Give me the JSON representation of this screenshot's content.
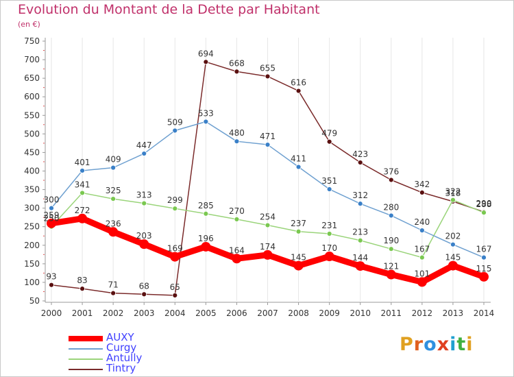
{
  "title": "Evolution du Montant de la Dette par Habitant",
  "subtitle": "(en €)",
  "logo": {
    "text": "Proxiti",
    "letters": [
      {
        "ch": "P",
        "color": "#e0a020"
      },
      {
        "ch": "r",
        "color": "#e06020"
      },
      {
        "ch": "o",
        "color": "#3090e0"
      },
      {
        "ch": "x",
        "color": "#e04020"
      },
      {
        "ch": "i",
        "color": "#20a0d0"
      },
      {
        "ch": "t",
        "color": "#40b040"
      },
      {
        "ch": "i",
        "color": "#e0a020"
      }
    ]
  },
  "chart_data": {
    "type": "line",
    "title": "Evolution du Montant de la Dette par Habitant",
    "ylabel": "(en €)",
    "xlabel": "",
    "x": [
      "2000",
      "2001",
      "2002",
      "2003",
      "2004",
      "2005",
      "2006",
      "2007",
      "2008",
      "2009",
      "2010",
      "2011",
      "2012",
      "2013",
      "2014"
    ],
    "ylim": [
      50,
      750
    ],
    "yticks": [
      50,
      100,
      150,
      200,
      250,
      300,
      350,
      400,
      450,
      500,
      550,
      600,
      650,
      700,
      750
    ],
    "grid": "vertical",
    "legend": "bottom-left",
    "series": [
      {
        "name": "AUXY",
        "color": "#ff0000",
        "values": [
          259,
          272,
          236,
          203,
          169,
          196,
          164,
          174,
          145,
          170,
          144,
          121,
          101,
          145,
          115
        ]
      },
      {
        "name": "Curgy",
        "color": "#6ea0d0",
        "values": [
          300,
          401,
          409,
          447,
          509,
          533,
          480,
          471,
          411,
          351,
          312,
          280,
          240,
          202,
          167
        ]
      },
      {
        "name": "Antully",
        "color": "#9ad47a",
        "values": [
          250,
          341,
          325,
          313,
          299,
          285,
          270,
          254,
          237,
          231,
          213,
          190,
          167,
          322,
          288
        ]
      },
      {
        "name": "Tintry",
        "color": "#7a2a2a",
        "values": [
          93,
          83,
          71,
          68,
          65,
          694,
          668,
          655,
          616,
          479,
          423,
          376,
          342,
          318,
          290
        ]
      }
    ],
    "labels": [
      [
        "259",
        "272",
        "236",
        "203",
        "169",
        "196",
        "164",
        "174",
        "145",
        "170",
        "144",
        "121",
        "101",
        "145",
        "115"
      ],
      [
        "300",
        "401",
        "409",
        "447",
        "509",
        "533",
        "480",
        "471",
        "411",
        "351",
        "312",
        "280",
        "240",
        "202",
        "167"
      ],
      [
        "250",
        "341",
        "325",
        "313",
        "299",
        "285",
        "270",
        "254",
        "237",
        "231",
        "213",
        "190",
        "167",
        "322",
        "288"
      ],
      [
        "93",
        "83",
        "71",
        "68",
        "65",
        "694",
        "668",
        "655",
        "616",
        "479",
        "423",
        "376",
        "342",
        "318",
        "290"
      ]
    ]
  }
}
